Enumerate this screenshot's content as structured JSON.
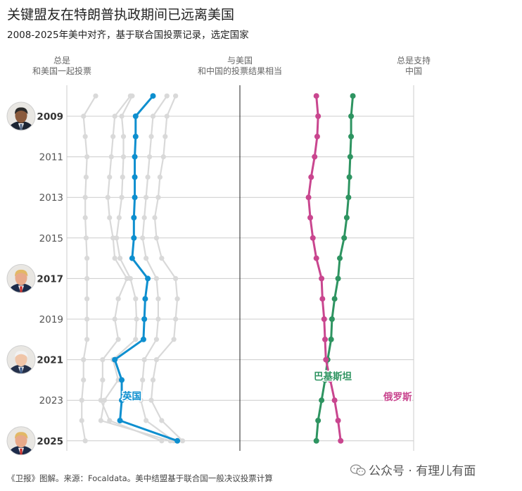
{
  "title": "关键盟友在特朗普执政期间已远离美国",
  "subtitle": "2008-2025年美中对齐，基于联合国投票记录，选定国家",
  "column_headers": {
    "left": [
      "总是",
      "和美国一起投票"
    ],
    "middle": [
      "与美国",
      "和中国的投票结果相当"
    ],
    "right": [
      "总是支持",
      "中国"
    ]
  },
  "footer": "《卫报》图解。来源：Focaldata。美中结盟基于联合国一般决议投票计算",
  "watermark": "公众号 · 有理儿有面",
  "colors": {
    "uk": "#0e8fcf",
    "pakistan": "#2e9461",
    "russia": "#c9468f",
    "background_series": "#d9d9d9",
    "grid": "#cccccc",
    "axis": "#222222"
  },
  "president_icons": [
    {
      "year": 2009,
      "icon": "obama-portrait-icon"
    },
    {
      "year": 2017,
      "icon": "trump-portrait-icon"
    },
    {
      "year": 2021,
      "icon": "biden-portrait-icon"
    },
    {
      "year": 2025,
      "icon": "trump-portrait-icon"
    }
  ],
  "chart_data": {
    "type": "line",
    "orientation": "vertical-time",
    "y_axis_years": [
      2008,
      2025
    ],
    "year_tick_labels": [
      2009,
      2011,
      2013,
      2015,
      2017,
      2019,
      2021,
      2023,
      2025
    ],
    "bold_tick_years": [
      2009,
      2017,
      2021,
      2025
    ],
    "x_axis": "alignment score: -1 = always voted with the US, 0 = equal, 1 = always supported China",
    "xlim": [
      -1,
      1
    ],
    "years": [
      2008,
      2009,
      2010,
      2011,
      2012,
      2013,
      2014,
      2015,
      2016,
      2017,
      2018,
      2019,
      2020,
      2021,
      2022,
      2023,
      2024,
      2025
    ],
    "series": [
      {
        "name": "英国",
        "highlight": true,
        "color_key": "uk",
        "values": [
          -0.5,
          -0.6,
          -0.6,
          -0.605,
          -0.605,
          -0.605,
          -0.61,
          -0.61,
          -0.62,
          -0.53,
          -0.545,
          -0.55,
          -0.555,
          -0.72,
          -0.68,
          -0.68,
          -0.69,
          -0.36
        ]
      },
      {
        "name": "巴基斯坦",
        "highlight": true,
        "color_key": "pakistan",
        "values": [
          0.65,
          0.64,
          0.64,
          0.635,
          0.63,
          0.625,
          0.615,
          0.6,
          0.575,
          0.565,
          0.545,
          0.53,
          0.525,
          0.505,
          0.49,
          0.47,
          0.45,
          0.44
        ]
      },
      {
        "name": "俄罗斯",
        "highlight": true,
        "color_key": "russia",
        "values": [
          0.44,
          0.45,
          0.445,
          0.43,
          0.41,
          0.395,
          0.405,
          0.42,
          0.44,
          0.47,
          0.475,
          0.485,
          0.49,
          0.495,
          0.52,
          0.545,
          0.565,
          0.58
        ]
      },
      {
        "name": "",
        "highlight": false,
        "values": [
          -0.83,
          -0.9,
          -0.89,
          -0.88,
          -0.885,
          -0.89,
          -0.89,
          -0.885,
          -0.88,
          -0.88,
          -0.88,
          -0.88,
          -0.88,
          -0.9,
          -0.9,
          -0.91,
          -0.91,
          -0.89
        ]
      },
      {
        "name": "",
        "highlight": false,
        "values": [
          -0.62,
          -0.68,
          -0.67,
          -0.67,
          -0.675,
          -0.68,
          -0.695,
          -0.71,
          -0.69,
          -0.63,
          -0.6,
          -0.595,
          -0.6,
          -0.73,
          -0.7,
          -0.78,
          -0.8,
          -0.4
        ]
      },
      {
        "name": "",
        "highlight": false,
        "values": [
          -0.63,
          -0.72,
          -0.73,
          -0.74,
          -0.75,
          -0.76,
          -0.75,
          -0.73,
          -0.72,
          -0.65,
          -0.7,
          -0.72,
          -0.7,
          -0.79,
          -0.79,
          -0.8,
          -0.75,
          -0.45
        ]
      },
      {
        "name": "",
        "highlight": false,
        "values": [
          -0.42,
          -0.5,
          -0.51,
          -0.52,
          -0.53,
          -0.54,
          -0.55,
          -0.56,
          -0.54,
          -0.48,
          -0.47,
          -0.47,
          -0.48,
          -0.55,
          -0.56,
          -0.57,
          -0.54,
          -0.38
        ]
      },
      {
        "name": "",
        "highlight": false,
        "values": [
          -0.37,
          -0.42,
          -0.43,
          -0.44,
          -0.46,
          -0.47,
          -0.49,
          -0.48,
          -0.45,
          -0.37,
          -0.36,
          -0.37,
          -0.38,
          -0.48,
          -0.5,
          -0.51,
          -0.45,
          -0.33
        ]
      }
    ],
    "annotations": [
      {
        "text": "英国",
        "series": "英国"
      },
      {
        "text": "巴基斯坦",
        "series": "巴基斯坦"
      },
      {
        "text": "俄罗斯",
        "series": "俄罗斯"
      }
    ]
  }
}
